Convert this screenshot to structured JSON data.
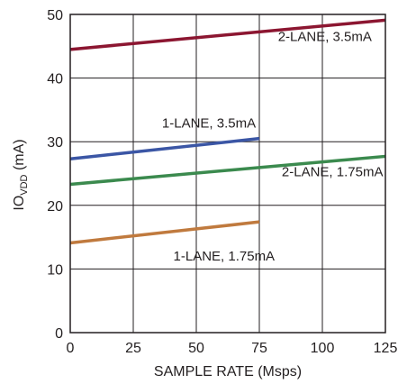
{
  "chart_data": {
    "type": "line",
    "xlabel": "SAMPLE RATE (Msps)",
    "ylabel_main": "IO",
    "ylabel_sub": "VDD",
    "ylabel_unit": " (mA)",
    "xlim": [
      0,
      125
    ],
    "ylim": [
      0,
      50
    ],
    "xticks": [
      0,
      25,
      50,
      75,
      100,
      125
    ],
    "yticks": [
      0,
      10,
      20,
      30,
      40,
      50
    ],
    "grid": true,
    "series": [
      {
        "name": "2-LANE, 3.5mA",
        "color": "#8c1631",
        "x": [
          0,
          125
        ],
        "y": [
          44.5,
          49.1
        ]
      },
      {
        "name": "1-LANE, 3.5mA",
        "color": "#3b56a5",
        "x": [
          0,
          75
        ],
        "y": [
          27.3,
          30.5
        ]
      },
      {
        "name": "2-LANE, 1.75mA",
        "color": "#3b8a4e",
        "x": [
          0,
          125
        ],
        "y": [
          23.3,
          27.7
        ]
      },
      {
        "name": "1-LANE, 1.75mA",
        "color": "#c07a3e",
        "x": [
          0,
          75
        ],
        "y": [
          14.1,
          17.4
        ]
      }
    ]
  }
}
